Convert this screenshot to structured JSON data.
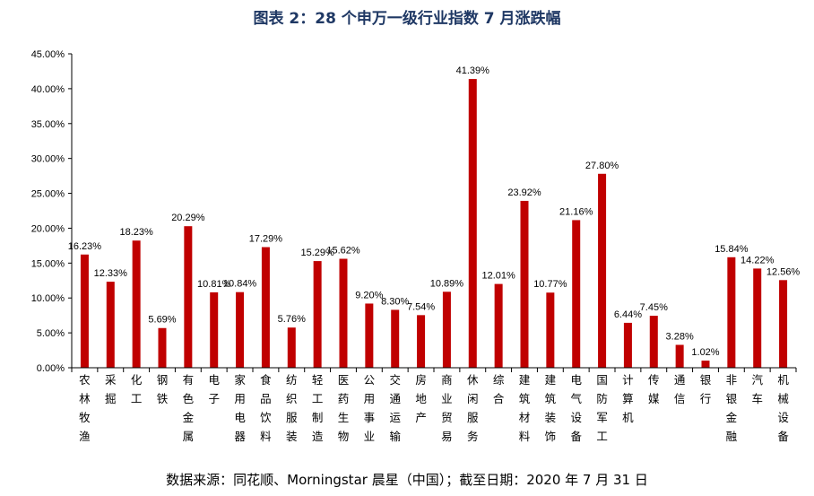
{
  "chart_data": {
    "type": "bar",
    "title": "图表 2：28 个申万一级行业指数 7 月涨跌幅",
    "xlabel": "",
    "ylabel": "",
    "ylim": [
      0,
      45
    ],
    "yticks": [
      "0.00%",
      "5.00%",
      "10.00%",
      "15.00%",
      "20.00%",
      "25.00%",
      "30.00%",
      "35.00%",
      "40.00%",
      "45.00%"
    ],
    "categories": [
      "农林牧渔",
      "采掘",
      "化工",
      "钢铁",
      "有色金属",
      "电子",
      "家用电器",
      "食品饮料",
      "纺织服装",
      "轻工制造",
      "医药生物",
      "公用事业",
      "交通运输",
      "房地产",
      "商业贸易",
      "休闲服务",
      "综合",
      "建筑材料",
      "建筑装饰",
      "电气设备",
      "国防军工",
      "计算机",
      "传媒",
      "通信",
      "银行",
      "非银金融",
      "汽车",
      "机械设备"
    ],
    "values": [
      16.23,
      12.33,
      18.23,
      5.69,
      20.29,
      10.81,
      10.84,
      17.29,
      5.76,
      15.29,
      15.62,
      9.2,
      8.3,
      7.54,
      10.89,
      41.39,
      12.01,
      23.92,
      10.77,
      21.16,
      27.8,
      6.44,
      7.45,
      3.28,
      1.02,
      15.84,
      14.22,
      12.56
    ],
    "labels": [
      "16.23%",
      "12.33%",
      "18.23%",
      "5.69%",
      "20.29%",
      "10.81%",
      "10.84%",
      "17.29%",
      "5.76%",
      "15.29%",
      "15.62%",
      "9.20%",
      "8.30%",
      "7.54%",
      "10.89%",
      "41.39%",
      "12.01%",
      "23.92%",
      "10.77%",
      "21.16%",
      "27.80%",
      "6.44%",
      "7.45%",
      "3.28%",
      "1.02%",
      "15.84%",
      "14.22%",
      "12.56%"
    ],
    "bar_color": "#c00000",
    "grid": false,
    "legend": "none"
  },
  "source_note": "数据来源：同花顺、Morningstar 晨星（中国）；截至日期：2020 年 7 月 31 日"
}
